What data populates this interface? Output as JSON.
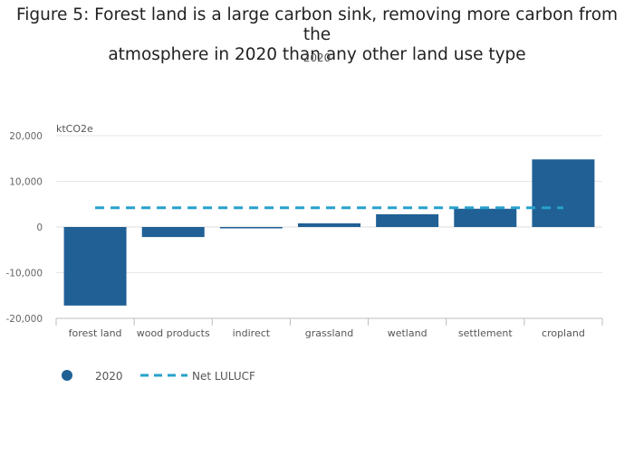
{
  "chart_data": {
    "type": "bar",
    "title_line1": "Figure 5: Forest land is a large carbon sink, removing more carbon from the",
    "title_line2": "atmosphere in 2020 than any other land use type",
    "subtitle": "2020",
    "ylabel": "ktCO2e",
    "ylim": [
      -20000,
      20000
    ],
    "yticks": [
      20000,
      10000,
      0,
      -10000,
      -20000
    ],
    "ytick_labels": [
      "20,000",
      "10,000",
      "0",
      "-10,000",
      "-20,000"
    ],
    "categories": [
      "forest land",
      "wood products",
      "indirect",
      "grassland",
      "wetland",
      "settlement",
      "cropland"
    ],
    "series": [
      {
        "name": "2020",
        "kind": "bar",
        "color": "#206095",
        "values": [
          -17200,
          -2200,
          -300,
          800,
          2800,
          4000,
          14800
        ]
      },
      {
        "name": "Net LULUCF",
        "kind": "line",
        "color": "#27a0cc",
        "value": 4200
      }
    ],
    "grid": true,
    "legend_position": "bottom-left"
  }
}
